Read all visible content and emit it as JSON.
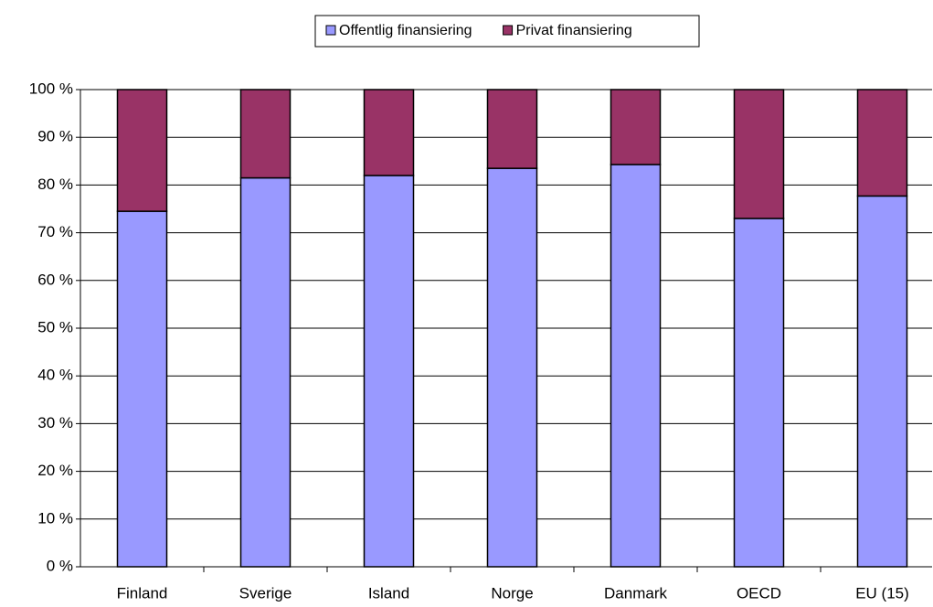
{
  "chart_data": {
    "type": "stacked_bar",
    "categories": [
      "Finland",
      "Sverige",
      "Island",
      "Norge",
      "Danmark",
      "OECD",
      "EU (15)"
    ],
    "series": [
      {
        "name": "Offentlig finansiering",
        "color": "#9999ff",
        "values": [
          74.5,
          81.5,
          82,
          83.5,
          84.3,
          73,
          77.7
        ]
      },
      {
        "name": "Privat finansiering",
        "color": "#993366",
        "values": [
          25.5,
          18.5,
          18,
          16.5,
          15.7,
          27,
          22.3
        ]
      }
    ],
    "ylim": [
      0,
      100
    ],
    "yticks": [
      {
        "value": 0,
        "label": "0 %"
      },
      {
        "value": 10,
        "label": "10 %"
      },
      {
        "value": 20,
        "label": "20 %"
      },
      {
        "value": 30,
        "label": "30 %"
      },
      {
        "value": 40,
        "label": "40 %"
      },
      {
        "value": 50,
        "label": "50 %"
      },
      {
        "value": 60,
        "label": "60 %"
      },
      {
        "value": 70,
        "label": "70 %"
      },
      {
        "value": 80,
        "label": "80 %"
      },
      {
        "value": 90,
        "label": "90 %"
      },
      {
        "value": 100,
        "label": "100 %"
      }
    ],
    "grid": true,
    "legend": "top"
  }
}
